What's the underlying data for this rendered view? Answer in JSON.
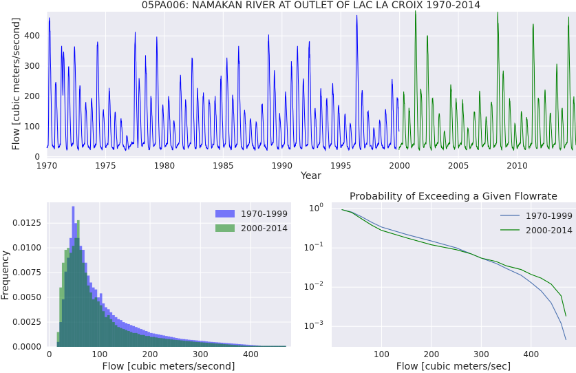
{
  "chart_data": [
    {
      "id": "timeseries",
      "type": "line",
      "title": "05PA006: NAMAKAN RIVER AT OUTLET OF LAC LA CROIX 1970-2014",
      "xlabel": "Year",
      "ylabel": "Flow [cubic meters/second]",
      "xlim": [
        1970,
        2015
      ],
      "ylim": [
        -5,
        480
      ],
      "x_ticks": [
        "1970",
        "1975",
        "1980",
        "1985",
        "1990",
        "1995",
        "2000",
        "2005",
        "2010"
      ],
      "y_ticks": [
        "0",
        "100",
        "200",
        "300",
        "400"
      ],
      "series": [
        {
          "color": "#0000ff",
          "peaks": [
            {
              "t": 1970.22,
              "v": 465
            },
            {
              "t": 1970.75,
              "v": 255
            },
            {
              "t": 1971.25,
              "v": 360
            },
            {
              "t": 1971.42,
              "v": 335
            },
            {
              "t": 1971.85,
              "v": 300
            },
            {
              "t": 1972.35,
              "v": 360
            },
            {
              "t": 1972.8,
              "v": 240
            },
            {
              "t": 1973.3,
              "v": 175
            },
            {
              "t": 1973.8,
              "v": 195
            },
            {
              "t": 1974.3,
              "v": 385
            },
            {
              "t": 1974.8,
              "v": 155
            },
            {
              "t": 1975.3,
              "v": 220
            },
            {
              "t": 1975.8,
              "v": 145
            },
            {
              "t": 1976.3,
              "v": 125
            },
            {
              "t": 1976.8,
              "v": 70
            },
            {
              "t": 1977.5,
              "v": 400
            },
            {
              "t": 1977.85,
              "v": 260
            },
            {
              "t": 1978.4,
              "v": 320
            },
            {
              "t": 1978.85,
              "v": 195
            },
            {
              "t": 1979.35,
              "v": 385
            },
            {
              "t": 1979.85,
              "v": 170
            },
            {
              "t": 1980.35,
              "v": 200
            },
            {
              "t": 1980.8,
              "v": 120
            },
            {
              "t": 1981.35,
              "v": 265
            },
            {
              "t": 1981.8,
              "v": 190
            },
            {
              "t": 1982.35,
              "v": 330
            },
            {
              "t": 1982.8,
              "v": 215
            },
            {
              "t": 1983.3,
              "v": 205
            },
            {
              "t": 1983.8,
              "v": 190
            },
            {
              "t": 1984.3,
              "v": 195
            },
            {
              "t": 1984.8,
              "v": 265
            },
            {
              "t": 1985.3,
              "v": 320
            },
            {
              "t": 1985.8,
              "v": 205
            },
            {
              "t": 1986.3,
              "v": 360
            },
            {
              "t": 1986.8,
              "v": 155
            },
            {
              "t": 1987.3,
              "v": 125
            },
            {
              "t": 1987.8,
              "v": 115
            },
            {
              "t": 1988.3,
              "v": 175
            },
            {
              "t": 1988.85,
              "v": 390
            },
            {
              "t": 1989.35,
              "v": 270
            },
            {
              "t": 1989.8,
              "v": 140
            },
            {
              "t": 1990.3,
              "v": 210
            },
            {
              "t": 1990.8,
              "v": 300
            },
            {
              "t": 1991.3,
              "v": 355
            },
            {
              "t": 1991.8,
              "v": 260
            },
            {
              "t": 1992.3,
              "v": 385
            },
            {
              "t": 1992.8,
              "v": 160
            },
            {
              "t": 1993.3,
              "v": 220
            },
            {
              "t": 1993.8,
              "v": 190
            },
            {
              "t": 1994.3,
              "v": 240
            },
            {
              "t": 1994.8,
              "v": 165
            },
            {
              "t": 1995.35,
              "v": 140
            },
            {
              "t": 1995.8,
              "v": 110
            },
            {
              "t": 1996.35,
              "v": 470
            },
            {
              "t": 1996.8,
              "v": 215
            },
            {
              "t": 1997.3,
              "v": 150
            },
            {
              "t": 1997.8,
              "v": 95
            },
            {
              "t": 1998.3,
              "v": 120
            },
            {
              "t": 1998.8,
              "v": 150
            },
            {
              "t": 1999.35,
              "v": 250
            },
            {
              "t": 1999.8,
              "v": 205
            }
          ]
        },
        {
          "color": "#008000",
          "peaks": [
            {
              "t": 2000.35,
              "v": 205
            },
            {
              "t": 2000.8,
              "v": 160
            },
            {
              "t": 2001.35,
              "v": 470
            },
            {
              "t": 2001.8,
              "v": 225
            },
            {
              "t": 2002.35,
              "v": 395
            },
            {
              "t": 2002.8,
              "v": 195
            },
            {
              "t": 2003.35,
              "v": 140
            },
            {
              "t": 2003.8,
              "v": 85
            },
            {
              "t": 2004.35,
              "v": 240
            },
            {
              "t": 2004.8,
              "v": 185
            },
            {
              "t": 2005.35,
              "v": 180
            },
            {
              "t": 2005.8,
              "v": 95
            },
            {
              "t": 2006.35,
              "v": 150
            },
            {
              "t": 2006.8,
              "v": 210
            },
            {
              "t": 2007.35,
              "v": 130
            },
            {
              "t": 2007.8,
              "v": 190
            },
            {
              "t": 2008.35,
              "v": 465
            },
            {
              "t": 2008.8,
              "v": 280
            },
            {
              "t": 2009.35,
              "v": 185
            },
            {
              "t": 2009.8,
              "v": 110
            },
            {
              "t": 2010.35,
              "v": 145
            },
            {
              "t": 2010.8,
              "v": 130
            },
            {
              "t": 2011.35,
              "v": 430
            },
            {
              "t": 2011.8,
              "v": 195
            },
            {
              "t": 2012.35,
              "v": 215
            },
            {
              "t": 2012.8,
              "v": 145
            },
            {
              "t": 2013.35,
              "v": 295
            },
            {
              "t": 2013.8,
              "v": 160
            },
            {
              "t": 2014.35,
              "v": 460
            },
            {
              "t": 2014.8,
              "v": 195
            }
          ]
        }
      ]
    },
    {
      "id": "histogram",
      "type": "bar",
      "xlabel": "Flow [cubic meters/second]",
      "ylabel": "Frequency",
      "xlim": [
        -5,
        480
      ],
      "ylim": [
        0,
        0.0146
      ],
      "x_ticks": [
        "0",
        "100",
        "200",
        "300",
        "400"
      ],
      "y_ticks": [
        "0.0000",
        "0.0025",
        "0.0050",
        "0.0075",
        "0.0100",
        "0.0125"
      ],
      "legend": {
        "position": "top-right"
      },
      "bin_start": 15,
      "bin_width": 5,
      "series": [
        {
          "name": "1970-1999",
          "color": "#0000ff",
          "values": [
            0.0005,
            0.0025,
            0.0048,
            0.0076,
            0.009,
            0.011,
            0.0142,
            0.0125,
            0.011,
            0.0102,
            0.0098,
            0.0085,
            0.0072,
            0.0065,
            0.006,
            0.0058,
            0.005,
            0.0054,
            0.0044,
            0.004,
            0.0038,
            0.0035,
            0.0032,
            0.003,
            0.0028,
            0.0027,
            0.0025,
            0.0024,
            0.0023,
            0.0022,
            0.0021,
            0.002,
            0.0019,
            0.0018,
            0.0017,
            0.0016,
            0.0015,
            0.0014,
            0.00135,
            0.0013,
            0.00125,
            0.0012,
            0.00115,
            0.0011,
            0.00105,
            0.001,
            0.00095,
            0.0009,
            0.00085,
            0.0008,
            0.00078,
            0.00075,
            0.00072,
            0.0007,
            0.00068,
            0.00065,
            0.00062,
            0.0006,
            0.00058,
            0.00055,
            0.00052,
            0.0005,
            0.00048,
            0.00046,
            0.00044,
            0.00042,
            0.0004,
            0.00038,
            0.00036,
            0.00034,
            0.00032,
            0.0003,
            0.00028,
            0.00026,
            0.00024,
            0.00022,
            0.0002,
            0.00018,
            0.00016,
            0.00014,
            0.00012,
            0.0001,
            0.0001,
            0.0001,
            0.0001,
            0.0001,
            0.0001,
            0.0001,
            0.0001,
            0.0001,
            0.0001
          ]
        },
        {
          "name": "2000-2014",
          "color": "#008000",
          "values": [
            0.0015,
            0.006,
            0.0085,
            0.0098,
            0.01,
            0.0095,
            0.0102,
            0.011,
            0.0128,
            0.0098,
            0.0085,
            0.0075,
            0.0062,
            0.0055,
            0.0048,
            0.005,
            0.0046,
            0.0042,
            0.0036,
            0.003,
            0.0032,
            0.0028,
            0.0025,
            0.0022,
            0.002,
            0.0019,
            0.0018,
            0.0017,
            0.0016,
            0.0015,
            0.0014,
            0.0014,
            0.0013,
            0.0012,
            0.0012,
            0.0011,
            0.0011,
            0.001,
            0.001,
            0.00095,
            0.0009,
            0.00088,
            0.00085,
            0.0008,
            0.00078,
            0.00075,
            0.00072,
            0.0007,
            0.00068,
            0.00065,
            0.00062,
            0.0006,
            0.00058,
            0.00055,
            0.00052,
            0.0005,
            0.00048,
            0.00046,
            0.00044,
            0.00042,
            0.0004,
            0.00038,
            0.00036,
            0.00034,
            0.00032,
            0.0003,
            0.00028,
            0.00026,
            0.00024,
            0.00022,
            0.0002,
            0.00018,
            0.00016,
            0.00014,
            0.00012,
            0.0001,
            0.0001,
            0.0001,
            0.0001,
            0.0001,
            0.0001,
            0.0001,
            0.0001,
            0.0001,
            0.0001,
            0.0001,
            0.0001,
            0.0001,
            0.0001,
            0.0001,
            0.0001
          ]
        }
      ]
    },
    {
      "id": "exceedance",
      "type": "line",
      "title": "Probability of Exceeding a Given Flowrate",
      "xlabel": "Flow [cubic meters/sec]",
      "ylabel": "",
      "xlim": [
        0,
        490
      ],
      "ylim": [
        0.0003,
        1.45
      ],
      "yscale": "log",
      "x_ticks": [
        "100",
        "200",
        "300",
        "400"
      ],
      "legend": {
        "position": "top-right"
      },
      "series": [
        {
          "name": "1970-1999",
          "color": "#4c72b0",
          "x": [
            20,
            40,
            60,
            80,
            100,
            150,
            200,
            250,
            280,
            300,
            330,
            350,
            380,
            400,
            420,
            440,
            460,
            470
          ],
          "y": [
            0.95,
            0.82,
            0.62,
            0.45,
            0.34,
            0.22,
            0.15,
            0.1,
            0.07,
            0.055,
            0.04,
            0.03,
            0.02,
            0.013,
            0.008,
            0.004,
            0.0012,
            0.00045
          ]
        },
        {
          "name": "2000-2014",
          "color": "#008000",
          "x": [
            20,
            40,
            60,
            80,
            100,
            150,
            200,
            250,
            280,
            300,
            330,
            350,
            380,
            400,
            420,
            440,
            460,
            470
          ],
          "y": [
            0.95,
            0.8,
            0.55,
            0.38,
            0.28,
            0.18,
            0.12,
            0.09,
            0.07,
            0.055,
            0.045,
            0.035,
            0.028,
            0.021,
            0.017,
            0.012,
            0.006,
            0.0018
          ]
        }
      ]
    }
  ]
}
